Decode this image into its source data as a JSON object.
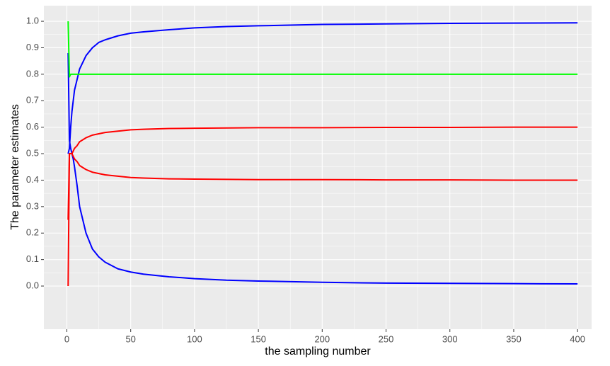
{
  "chart_data": {
    "type": "line",
    "x_label": "the sampling number",
    "y_label": "The parameter estimates",
    "x": [
      1,
      2,
      3,
      4,
      5,
      6,
      8,
      10,
      15,
      20,
      25,
      30,
      40,
      50,
      60,
      80,
      100,
      125,
      150,
      200,
      250,
      300,
      350,
      400
    ],
    "series": [
      {
        "color": "#0000ff",
        "values": [
          0.5,
          0.52,
          0.6,
          0.66,
          0.7,
          0.74,
          0.78,
          0.82,
          0.87,
          0.9,
          0.92,
          0.93,
          0.945,
          0.955,
          0.96,
          0.968,
          0.975,
          0.98,
          0.983,
          0.988,
          0.99,
          0.992,
          0.993,
          0.994
        ]
      },
      {
        "color": "#0000ff",
        "values": [
          0.88,
          0.55,
          0.52,
          0.5,
          0.48,
          0.45,
          0.38,
          0.3,
          0.2,
          0.14,
          0.11,
          0.09,
          0.065,
          0.053,
          0.045,
          0.035,
          0.028,
          0.022,
          0.019,
          0.014,
          0.011,
          0.01,
          0.009,
          0.008
        ]
      },
      {
        "color": "#ff0000",
        "values": [
          0.0,
          0.5,
          0.5,
          0.5,
          0.51,
          0.52,
          0.53,
          0.545,
          0.56,
          0.57,
          0.575,
          0.58,
          0.585,
          0.59,
          0.592,
          0.595,
          0.596,
          0.597,
          0.598,
          0.598,
          0.599,
          0.599,
          0.6,
          0.6
        ]
      },
      {
        "color": "#ff0000",
        "values": [
          0.25,
          0.5,
          0.5,
          0.5,
          0.49,
          0.48,
          0.47,
          0.455,
          0.44,
          0.43,
          0.425,
          0.42,
          0.415,
          0.41,
          0.408,
          0.405,
          0.404,
          0.403,
          0.402,
          0.402,
          0.401,
          0.401,
          0.4,
          0.4
        ]
      },
      {
        "color": "#00ff00",
        "values": [
          1.0,
          0.79,
          0.8,
          0.8,
          0.8,
          0.8,
          0.8,
          0.8,
          0.8,
          0.8,
          0.8,
          0.8,
          0.8,
          0.8,
          0.8,
          0.8,
          0.8,
          0.8,
          0.8,
          0.8,
          0.8,
          0.8,
          0.8,
          0.8
        ]
      }
    ],
    "xlim": [
      -18,
      411
    ],
    "ylim": [
      -0.163,
      1.059
    ],
    "xticks": [
      0,
      50,
      100,
      150,
      200,
      250,
      300,
      350,
      400
    ],
    "yticks": [
      {
        "value": 0,
        "label": "0.0"
      },
      0.1,
      0.2,
      0.3,
      0.4,
      0.5,
      0.6,
      0.7,
      0.8,
      0.9,
      {
        "value": 1,
        "label": "1.0"
      }
    ],
    "grid": true
  }
}
